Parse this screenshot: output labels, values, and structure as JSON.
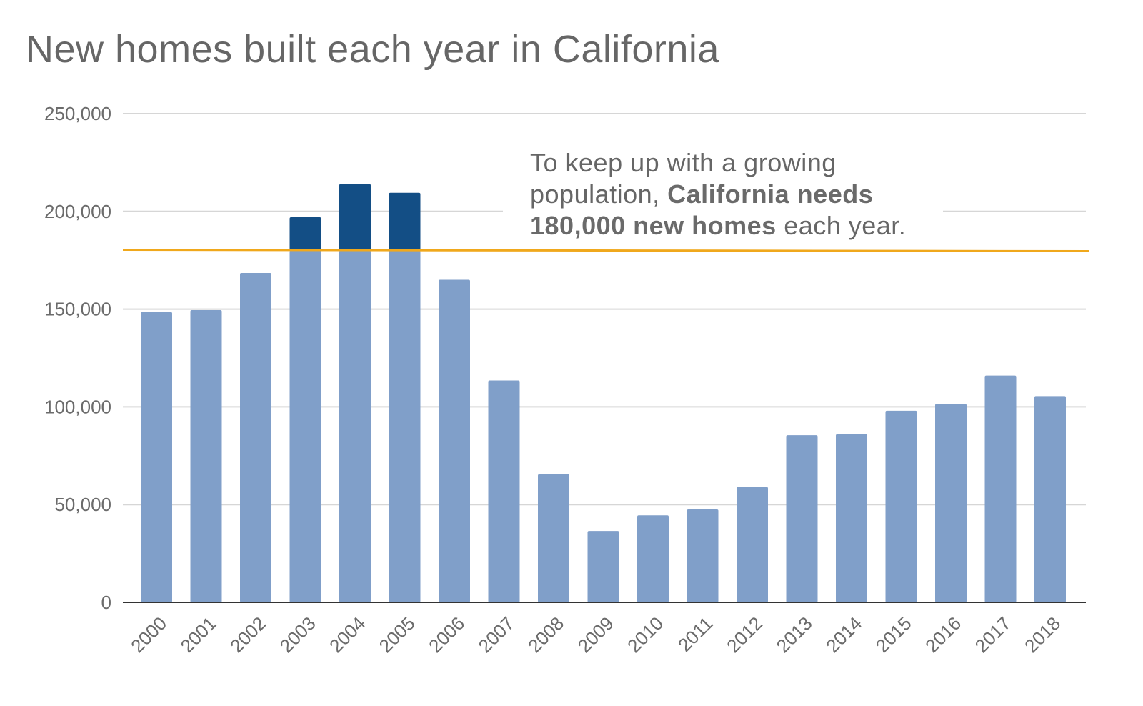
{
  "chart_data": {
    "type": "bar",
    "title": "New homes built each year in California",
    "xlabel": "",
    "ylabel": "",
    "categories": [
      "2000",
      "2001",
      "2002",
      "2003",
      "2004",
      "2005",
      "2006",
      "2007",
      "2008",
      "2009",
      "2010",
      "2011",
      "2012",
      "2013",
      "2014",
      "2015",
      "2016",
      "2017",
      "2018"
    ],
    "values": [
      148500,
      149500,
      168500,
      197000,
      214000,
      209500,
      165000,
      113500,
      65500,
      36500,
      44500,
      47500,
      59000,
      85500,
      86000,
      98000,
      101500,
      116000,
      105500
    ],
    "ylim": [
      0,
      250000
    ],
    "yticks": [
      0,
      50000,
      100000,
      150000,
      200000,
      250000
    ],
    "ytick_labels": [
      "0",
      "50,000",
      "100,000",
      "150,000",
      "200,000",
      "250,000"
    ],
    "grid": true,
    "reference_line": {
      "value": 180000
    },
    "colors": {
      "bar": "#809fc9",
      "bar_above_target": "#134e85",
      "reference_line": "#f0a81c",
      "grid": "#d6d6d6",
      "axis": "#333333"
    },
    "annotation": {
      "line1": "To keep up with a growing",
      "line2_normal": "population, ",
      "line2_bold": "California needs",
      "line3_bold": "180,000 new homes",
      "line3_normal": " each year."
    }
  }
}
